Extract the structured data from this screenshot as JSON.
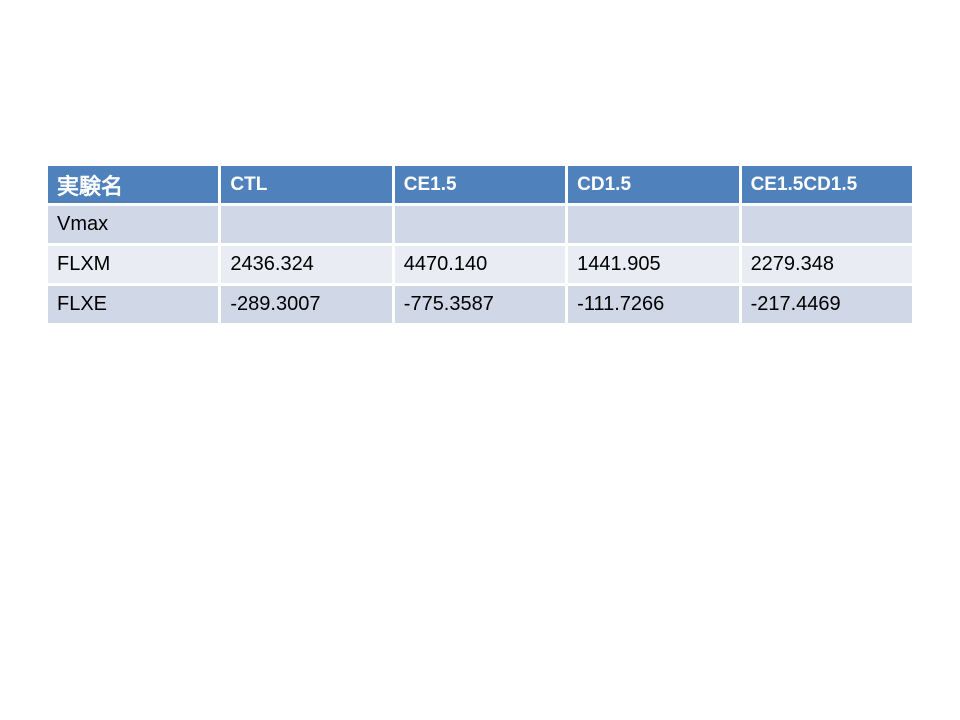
{
  "colors": {
    "background": "#ffffff",
    "header_fill": "#4f81bd",
    "header_text": "#ffffff",
    "band_dark": "#d0d7e6",
    "band_light": "#eaecf4",
    "body_text": "#000000"
  },
  "table": {
    "header": [
      "実験名",
      "CTL",
      "CE1.5",
      "CD1.5",
      "CE1.5CD1.5"
    ],
    "rows": [
      {
        "label": "Vmax",
        "values": [
          "",
          "",
          "",
          ""
        ]
      },
      {
        "label": "FLXM",
        "values": [
          "2436.324",
          "4470.140",
          "1441.905",
          "2279.348"
        ]
      },
      {
        "label": "FLXE",
        "values": [
          "-289.3007",
          "-775.3587",
          "-111.7266",
          "-217.4469"
        ]
      }
    ]
  }
}
